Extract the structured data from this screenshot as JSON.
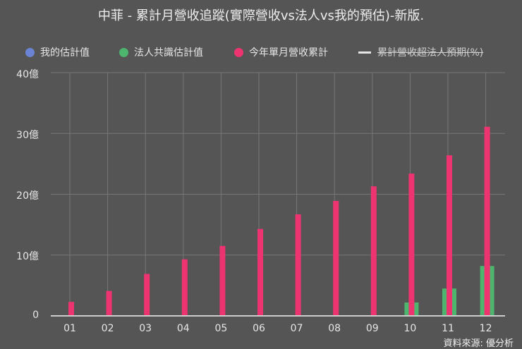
{
  "title": "中菲 - 累計月營收追蹤(實際營收vs法人vs我的預估)-新版.",
  "legend": [
    {
      "label": "我的估計值",
      "color": "#6b83d4",
      "marker": "dot",
      "hidden": false
    },
    {
      "label": "法人共識估計值",
      "color": "#4db56d",
      "marker": "dot",
      "hidden": false
    },
    {
      "label": "今年單月營收累計",
      "color": "#ee3470",
      "marker": "dot",
      "hidden": false
    },
    {
      "label": "累計營收超法人預期(%)",
      "color": "#e6e6e6",
      "marker": "line",
      "hidden": true
    }
  ],
  "y_axis": {
    "ticks": [
      "0",
      "10億",
      "20億",
      "30億",
      "40億"
    ]
  },
  "x_axis": {
    "ticks": [
      "01",
      "02",
      "03",
      "04",
      "05",
      "06",
      "07",
      "08",
      "09",
      "10",
      "11",
      "12"
    ]
  },
  "source": "資料來源: 優分析",
  "colors": {
    "background": "#555555",
    "grid": "#777777",
    "axis": "#cccccc"
  },
  "chart_data": {
    "type": "bar",
    "title": "中菲 - 累計月營收追蹤(實際營收vs法人vs我的預估)-新版.",
    "xlabel": "",
    "ylabel": "",
    "ylim": [
      0,
      40
    ],
    "y_unit": "億",
    "grid": true,
    "legend_position": "top",
    "categories": [
      "01",
      "02",
      "03",
      "04",
      "05",
      "06",
      "07",
      "08",
      "09",
      "10",
      "11",
      "12"
    ],
    "series": [
      {
        "name": "我的估計值",
        "color": "#6b83d4",
        "values": [
          null,
          null,
          null,
          null,
          null,
          null,
          null,
          null,
          null,
          null,
          null,
          null
        ]
      },
      {
        "name": "法人共識估計值",
        "color": "#4db56d",
        "values": [
          null,
          null,
          null,
          null,
          null,
          null,
          null,
          null,
          null,
          2.2,
          4.5,
          8.2
        ]
      },
      {
        "name": "今年單月營收累計",
        "color": "#ee3470",
        "values": [
          2.3,
          4.1,
          6.9,
          9.3,
          11.5,
          14.3,
          16.7,
          18.9,
          21.3,
          23.4,
          26.4,
          31.1
        ]
      },
      {
        "name": "累計營收超法人預期(%)",
        "color": "#e6e6e6",
        "type": "line",
        "hidden": true,
        "values": []
      }
    ]
  }
}
